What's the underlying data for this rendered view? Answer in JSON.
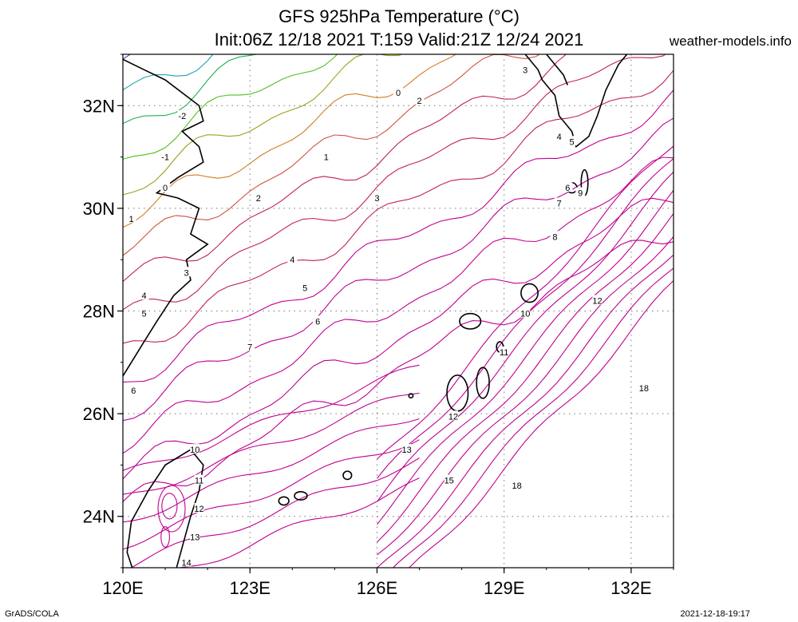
{
  "title_line1": "GFS 925hPa Temperature (°C)",
  "title_line2": "Init:06Z 12/18 2021 T:159 Valid:21Z 12/24 2021",
  "site": "weather-models.info",
  "footer_left": "GrADS/COLA",
  "footer_right": "2021-12-18-19:17",
  "axes": {
    "lon_ticks": [
      "120E",
      "123E",
      "126E",
      "129E",
      "132E"
    ],
    "lat_ticks": [
      "32N",
      "30N",
      "28N",
      "26N",
      "24N"
    ]
  },
  "map": {
    "lon_range": [
      120,
      133
    ],
    "lat_range": [
      23,
      33
    ],
    "grid_lines": true
  },
  "contours": {
    "unit": "°C",
    "levels": [
      -2,
      -1,
      0,
      1,
      2,
      3,
      4,
      5,
      6,
      7,
      8,
      9,
      10,
      11,
      12,
      13,
      14,
      15,
      18
    ],
    "labels": [
      {
        "v": "-2",
        "lon": 121.4,
        "lat": 31.8
      },
      {
        "v": "-1",
        "lon": 121.0,
        "lat": 31.0
      },
      {
        "v": "0",
        "lon": 121.0,
        "lat": 30.4
      },
      {
        "v": "1",
        "lon": 120.2,
        "lat": 29.8
      },
      {
        "v": "1",
        "lon": 124.8,
        "lat": 31.0
      },
      {
        "v": "0",
        "lon": 126.5,
        "lat": 32.25
      },
      {
        "v": "2",
        "lon": 127.0,
        "lat": 32.1
      },
      {
        "v": "2",
        "lon": 123.2,
        "lat": 30.2
      },
      {
        "v": "3",
        "lon": 126.0,
        "lat": 30.2
      },
      {
        "v": "3",
        "lon": 129.5,
        "lat": 32.7
      },
      {
        "v": "3",
        "lon": 121.5,
        "lat": 28.75
      },
      {
        "v": "4",
        "lon": 120.5,
        "lat": 28.3
      },
      {
        "v": "4",
        "lon": 124.0,
        "lat": 29.0
      },
      {
        "v": "4",
        "lon": 130.3,
        "lat": 31.4
      },
      {
        "v": "5",
        "lon": 120.5,
        "lat": 27.95
      },
      {
        "v": "5",
        "lon": 124.3,
        "lat": 28.45
      },
      {
        "v": "5",
        "lon": 130.6,
        "lat": 31.3
      },
      {
        "v": "6",
        "lon": 124.6,
        "lat": 27.8
      },
      {
        "v": "6",
        "lon": 120.25,
        "lat": 26.45
      },
      {
        "v": "6",
        "lon": 130.5,
        "lat": 30.4
      },
      {
        "v": "7",
        "lon": 123.0,
        "lat": 27.3
      },
      {
        "v": "7",
        "lon": 130.3,
        "lat": 30.1
      },
      {
        "v": "9",
        "lon": 130.8,
        "lat": 30.3
      },
      {
        "v": "8",
        "lon": 130.2,
        "lat": 29.45
      },
      {
        "v": "10",
        "lon": 129.5,
        "lat": 27.95
      },
      {
        "v": "10",
        "lon": 121.7,
        "lat": 25.3
      },
      {
        "v": "11",
        "lon": 129.0,
        "lat": 27.2
      },
      {
        "v": "11",
        "lon": 121.8,
        "lat": 24.7
      },
      {
        "v": "12",
        "lon": 131.2,
        "lat": 28.2
      },
      {
        "v": "12",
        "lon": 127.8,
        "lat": 25.95
      },
      {
        "v": "12",
        "lon": 121.8,
        "lat": 24.15
      },
      {
        "v": "13",
        "lon": 126.7,
        "lat": 25.3
      },
      {
        "v": "13",
        "lon": 121.7,
        "lat": 23.6
      },
      {
        "v": "14",
        "lon": 121.5,
        "lat": 23.1
      },
      {
        "v": "15",
        "lon": 127.7,
        "lat": 24.7
      },
      {
        "v": "18",
        "lon": 129.3,
        "lat": 24.6
      },
      {
        "v": "18",
        "lon": 132.3,
        "lat": 26.5
      }
    ]
  },
  "colors": {
    "cold": "#2020c0",
    "warm": "#c00090",
    "coast": "#000000"
  }
}
